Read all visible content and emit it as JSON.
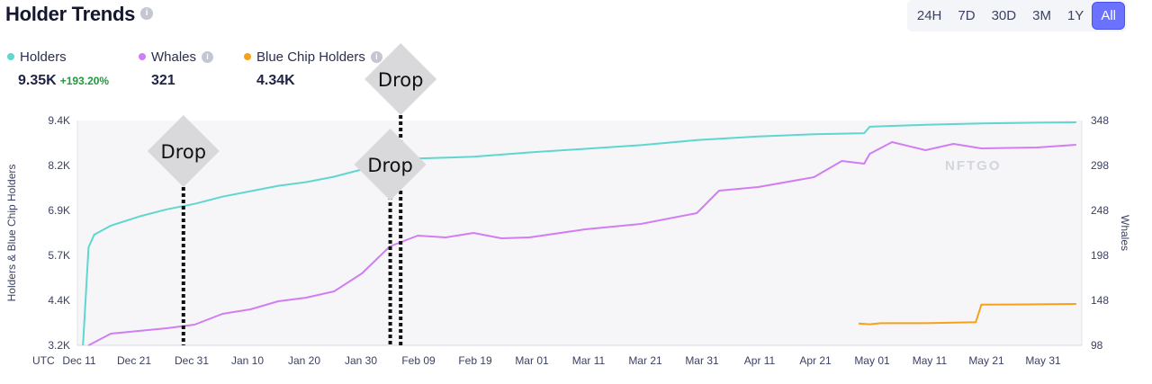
{
  "header": {
    "title": "Holder Trends",
    "info_glyph": "i",
    "ranges": [
      "24H",
      "7D",
      "30D",
      "3M",
      "1Y",
      "All"
    ],
    "active_range": "All"
  },
  "legend": [
    {
      "name": "Holders",
      "color": "#5fd6cf",
      "value": "9.35K",
      "change": "+193.20%",
      "info": false
    },
    {
      "name": "Whales",
      "color": "#d07ef2",
      "value": "321",
      "change": "",
      "info": true
    },
    {
      "name": "Blue Chip Holders",
      "color": "#f5a11c",
      "value": "4.34K",
      "change": "",
      "info": true
    }
  ],
  "watermark": "NFTGO",
  "annotations": [
    {
      "label": "Drop",
      "x": "2021-12-29"
    },
    {
      "label": "Drop",
      "x": "2022-02-04"
    },
    {
      "label": "Drop",
      "x": "2022-02-06"
    }
  ],
  "chart_data": {
    "type": "line",
    "xlabel": "UTC",
    "ylabel_left": "Holders & Blue Chip Holders",
    "ylabel_right": "Whales",
    "x_tick_labels": [
      "Dec 11",
      "Dec 21",
      "Dec 31",
      "Jan 10",
      "Jan 20",
      "Jan 30",
      "Feb 09",
      "Feb 19",
      "Mar 01",
      "Mar 11",
      "Mar 21",
      "Mar 31",
      "Apr 11",
      "Apr 21",
      "May 01",
      "May 11",
      "May 21",
      "May 31"
    ],
    "y_left_ticks": [
      "3.2K",
      "4.4K",
      "5.7K",
      "6.9K",
      "8.2K",
      "9.4K"
    ],
    "y_right_ticks": [
      "98",
      "148",
      "198",
      "248",
      "298",
      "348"
    ],
    "y_left_range": [
      3200,
      9400
    ],
    "y_right_range": [
      98,
      348
    ],
    "x_range": [
      "2021-12-10",
      "2022-06-08"
    ],
    "series": [
      {
        "name": "Holders",
        "axis": "left",
        "color": "#5fd6cf",
        "points": [
          [
            "2021-12-11",
            3200
          ],
          [
            "2021-12-12",
            5900
          ],
          [
            "2021-12-13",
            6250
          ],
          [
            "2021-12-16",
            6500
          ],
          [
            "2021-12-21",
            6750
          ],
          [
            "2021-12-26",
            6950
          ],
          [
            "2021-12-31",
            7100
          ],
          [
            "2022-01-05",
            7300
          ],
          [
            "2022-01-10",
            7450
          ],
          [
            "2022-01-15",
            7600
          ],
          [
            "2022-01-20",
            7700
          ],
          [
            "2022-01-25",
            7850
          ],
          [
            "2022-01-30",
            8050
          ],
          [
            "2022-02-04",
            8250
          ],
          [
            "2022-02-09",
            8350
          ],
          [
            "2022-02-19",
            8400
          ],
          [
            "2022-03-01",
            8520
          ],
          [
            "2022-03-11",
            8620
          ],
          [
            "2022-03-21",
            8720
          ],
          [
            "2022-03-31",
            8860
          ],
          [
            "2022-04-11",
            8960
          ],
          [
            "2022-04-21",
            9020
          ],
          [
            "2022-04-30",
            9050
          ],
          [
            "2022-05-01",
            9230
          ],
          [
            "2022-05-11",
            9280
          ],
          [
            "2022-05-21",
            9320
          ],
          [
            "2022-05-31",
            9340
          ],
          [
            "2022-06-07",
            9350
          ]
        ]
      },
      {
        "name": "Whales",
        "axis": "right",
        "color": "#d07ef2",
        "points": [
          [
            "2021-12-12",
            98
          ],
          [
            "2021-12-16",
            111
          ],
          [
            "2021-12-21",
            114
          ],
          [
            "2021-12-26",
            117
          ],
          [
            "2021-12-31",
            121
          ],
          [
            "2022-01-05",
            133
          ],
          [
            "2022-01-10",
            138
          ],
          [
            "2022-01-15",
            147
          ],
          [
            "2022-01-20",
            151
          ],
          [
            "2022-01-25",
            158
          ],
          [
            "2022-01-30",
            178
          ],
          [
            "2022-02-04",
            208
          ],
          [
            "2022-02-09",
            220
          ],
          [
            "2022-02-14",
            218
          ],
          [
            "2022-02-19",
            223
          ],
          [
            "2022-02-24",
            217
          ],
          [
            "2022-03-01",
            218
          ],
          [
            "2022-03-11",
            227
          ],
          [
            "2022-03-21",
            233
          ],
          [
            "2022-03-31",
            245
          ],
          [
            "2022-04-04",
            270
          ],
          [
            "2022-04-11",
            274
          ],
          [
            "2022-04-21",
            285
          ],
          [
            "2022-04-26",
            303
          ],
          [
            "2022-04-30",
            300
          ],
          [
            "2022-05-01",
            311
          ],
          [
            "2022-05-05",
            324
          ],
          [
            "2022-05-11",
            315
          ],
          [
            "2022-05-16",
            322
          ],
          [
            "2022-05-21",
            317
          ],
          [
            "2022-05-31",
            318
          ],
          [
            "2022-06-07",
            321
          ]
        ]
      },
      {
        "name": "Blue Chip Holders",
        "axis": "left",
        "color": "#f5a11c",
        "points": [
          [
            "2022-04-29",
            3800
          ],
          [
            "2022-05-01",
            3780
          ],
          [
            "2022-05-03",
            3810
          ],
          [
            "2022-05-11",
            3810
          ],
          [
            "2022-05-20",
            3840
          ],
          [
            "2022-05-21",
            4320
          ],
          [
            "2022-05-31",
            4330
          ],
          [
            "2022-06-07",
            4340
          ]
        ]
      }
    ]
  }
}
